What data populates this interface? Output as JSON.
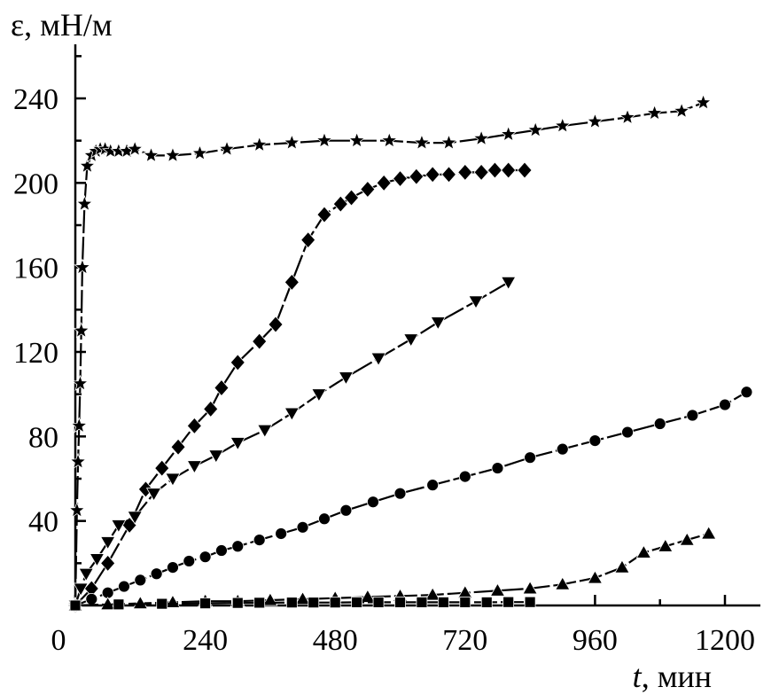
{
  "chart_data": {
    "type": "line",
    "ylabel_symbol": "ε",
    "ylabel_unit": ", мН/м",
    "xlabel_symbol": "t",
    "xlabel_unit": ", мин",
    "xlim": [
      -90,
      1300
    ],
    "ylim": [
      0,
      265
    ],
    "x_ticks": [
      0,
      240,
      480,
      720,
      960,
      1200
    ],
    "y_ticks": [
      40,
      80,
      120,
      160,
      200,
      240
    ],
    "x_tick_labels": [
      "0",
      "240",
      "480",
      "720",
      "960",
      "1200"
    ],
    "y_tick_labels": [
      "40",
      "80",
      "120",
      "160",
      "200",
      "240"
    ],
    "grid": false,
    "series": [
      {
        "marker": "star",
        "x": [
          0,
          3,
          5,
          7,
          9,
          11,
          13,
          17,
          22,
          30,
          38,
          46,
          55,
          65,
          80,
          95,
          110,
          140,
          180,
          230,
          280,
          340,
          400,
          460,
          520,
          580,
          640,
          690,
          750,
          800,
          850,
          900,
          960,
          1020,
          1070,
          1120,
          1160
        ],
        "y": [
          0,
          45,
          68,
          85,
          105,
          130,
          160,
          190,
          208,
          213,
          215,
          216,
          216,
          215,
          215,
          215,
          216,
          213,
          213,
          214,
          216,
          218,
          219,
          220,
          220,
          220,
          219,
          219,
          221,
          223,
          225,
          227,
          229,
          231,
          233,
          234,
          238
        ]
      },
      {
        "marker": "diamond",
        "x": [
          0,
          30,
          60,
          100,
          130,
          160,
          190,
          220,
          250,
          270,
          300,
          340,
          370,
          400,
          430,
          460,
          490,
          510,
          540,
          570,
          600,
          630,
          660,
          690,
          720,
          750,
          775,
          800,
          830
        ],
        "y": [
          0,
          8,
          20,
          38,
          55,
          65,
          75,
          85,
          93,
          103,
          115,
          125,
          133,
          153,
          173,
          185,
          190,
          193,
          197,
          200,
          202,
          203,
          204,
          204,
          205,
          205,
          206,
          206,
          206
        ]
      },
      {
        "marker": "triangle-down",
        "x": [
          0,
          10,
          20,
          40,
          60,
          80,
          110,
          145,
          180,
          220,
          260,
          300,
          350,
          400,
          450,
          500,
          560,
          620,
          670,
          740,
          800
        ],
        "y": [
          0,
          8,
          15,
          22,
          30,
          38,
          42,
          53,
          60,
          66,
          71,
          77,
          83,
          91,
          100,
          108,
          117,
          126,
          134,
          144,
          153
        ]
      },
      {
        "marker": "circle",
        "x": [
          0,
          30,
          60,
          90,
          120,
          150,
          180,
          210,
          240,
          270,
          300,
          340,
          380,
          420,
          460,
          500,
          550,
          600,
          660,
          720,
          780,
          840,
          900,
          960,
          1020,
          1080,
          1140,
          1200,
          1240
        ],
        "y": [
          0,
          3,
          6,
          9,
          12,
          15,
          18,
          21,
          23,
          26,
          28,
          31,
          34,
          37,
          41,
          45,
          49,
          53,
          57,
          61,
          65,
          70,
          74,
          78,
          82,
          86,
          90,
          95,
          101
        ]
      },
      {
        "marker": "triangle-up",
        "x": [
          0,
          60,
          120,
          180,
          240,
          300,
          360,
          420,
          480,
          540,
          600,
          660,
          720,
          780,
          840,
          900,
          960,
          1010,
          1050,
          1090,
          1130,
          1170
        ],
        "y": [
          0,
          0.5,
          1,
          1.5,
          2,
          2,
          2.5,
          3,
          3.5,
          4,
          4.5,
          5,
          6,
          7,
          8,
          10,
          13,
          18,
          25,
          28,
          31,
          34
        ]
      },
      {
        "marker": "square",
        "x": [
          0,
          80,
          160,
          240,
          300,
          340,
          400,
          440,
          480,
          520,
          560,
          600,
          640,
          680,
          720,
          760,
          800,
          840
        ],
        "y": [
          0,
          0.5,
          0.8,
          1,
          1.2,
          1.3,
          1.4,
          1.4,
          1.4,
          1.5,
          1.5,
          1.5,
          1.5,
          1.5,
          1.5,
          1.5,
          1.6,
          1.6
        ]
      }
    ]
  }
}
